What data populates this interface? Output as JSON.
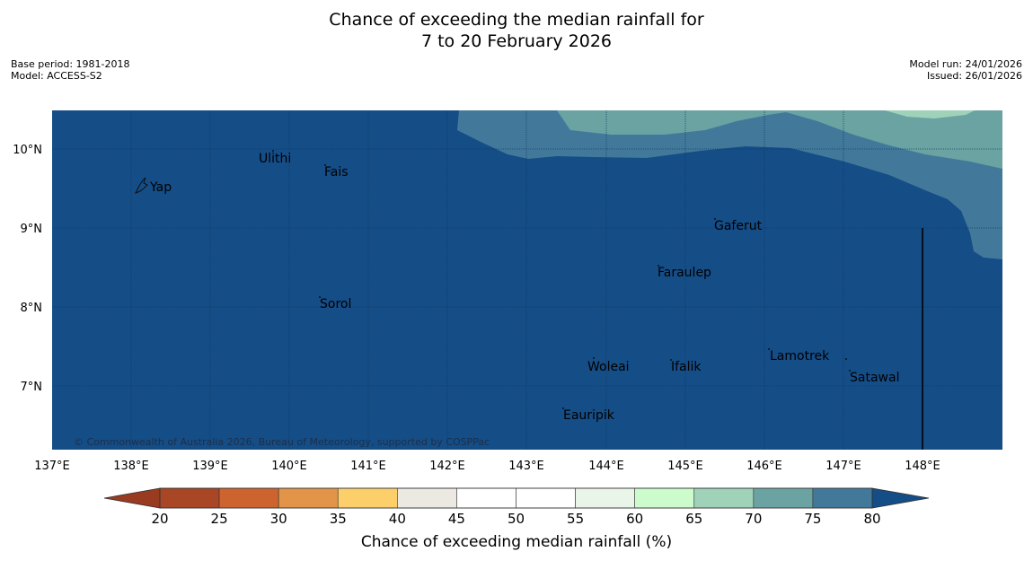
{
  "title": {
    "line1": "Chance of exceeding the median rainfall for",
    "line2": "7 to 20 February 2026"
  },
  "meta_left": {
    "base_period": "Base period: 1981-2018",
    "model": "Model: ACCESS-S2"
  },
  "meta_right": {
    "model_run": "Model run: 24/01/2026",
    "issued": "Issued: 26/01/2026"
  },
  "map": {
    "lat_labels": [
      "10°N",
      "9°N",
      "8°N",
      "7°N"
    ],
    "lon_labels": [
      "137°E",
      "138°E",
      "139°E",
      "140°E",
      "141°E",
      "142°E",
      "143°E",
      "144°E",
      "145°E",
      "146°E",
      "147°E",
      "148°E"
    ],
    "places": [
      "Yap",
      "Ulithi",
      "Fais",
      "Gaferut",
      "Faraulep",
      "Sorol",
      "Woleai",
      "Ifalik",
      "Lamotrek",
      "Satawal",
      "Eauripik"
    ],
    "copyright": "© Commonwealth of Australia 2026, Bureau of Meteorology, supported by COSPPac"
  },
  "colorbar": {
    "ticks": [
      "20",
      "25",
      "30",
      "35",
      "40",
      "45",
      "50",
      "55",
      "60",
      "65",
      "70",
      "75",
      "80"
    ],
    "colors": [
      "#a84625",
      "#cd6430",
      "#e29448",
      "#fdcf6b",
      "#ece8e2",
      "#ffffff",
      "#ffffff",
      "#eaf5ea",
      "#ccfccc",
      "#9fd2b9",
      "#6ba3a2",
      "#42799b"
    ],
    "low_color": "#993b21",
    "high_color": "#154d87",
    "label": "Chance of exceeding median rainfall (%)"
  }
}
